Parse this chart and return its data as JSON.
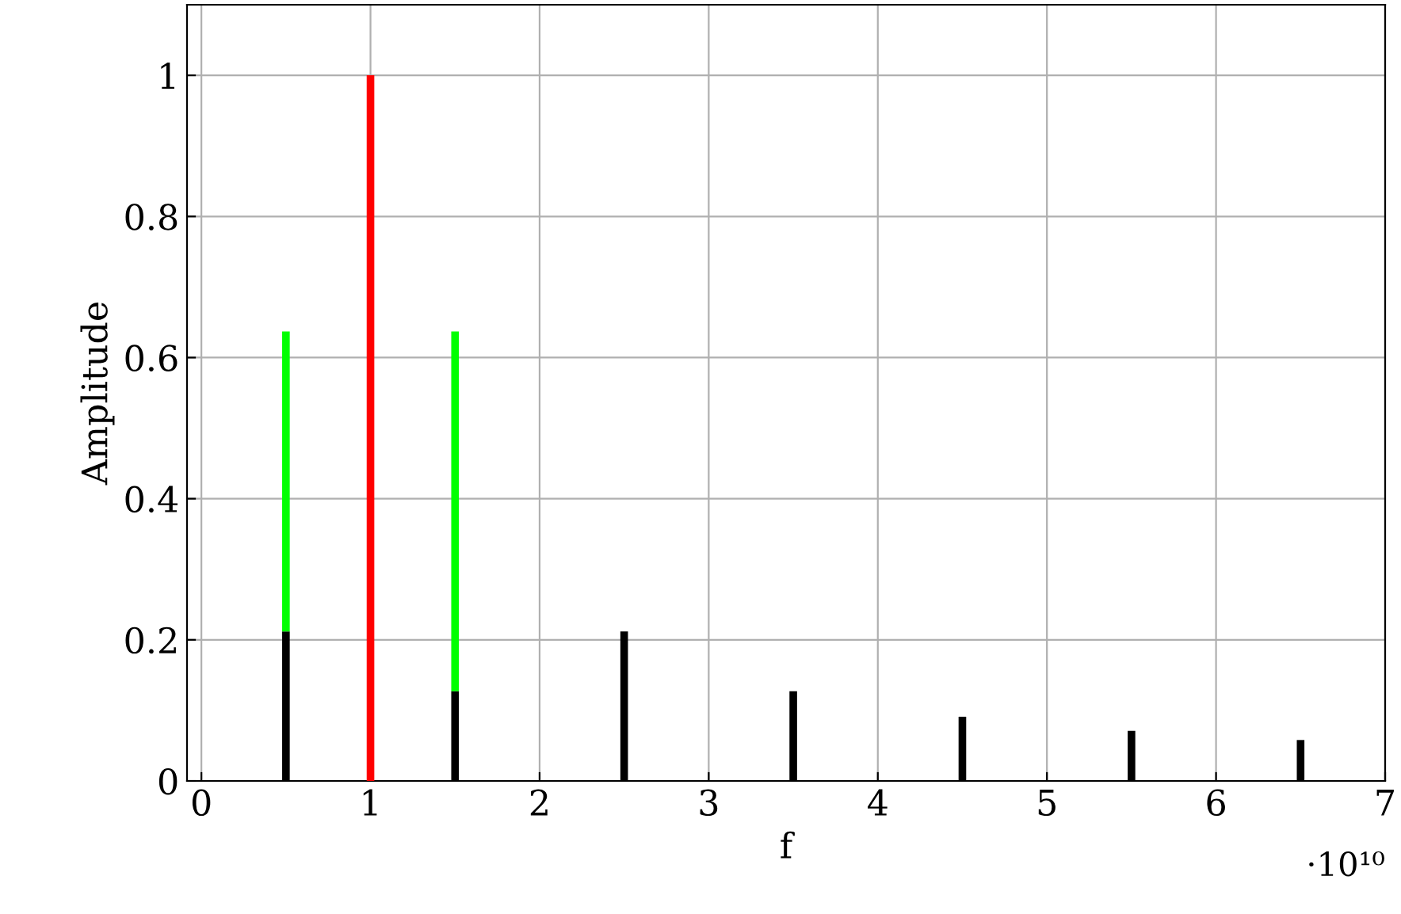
{
  "chart_data": {
    "type": "bar",
    "xlabel": "f",
    "ylabel": "Amplitude",
    "series": [
      {
        "color": "#000000",
        "values": [
          0.212,
          null,
          0.127,
          0.212,
          0.127,
          0.091,
          0.071,
          0.058
        ]
      },
      {
        "color": "#00ff00",
        "values": [
          0.425,
          null,
          0.51,
          null,
          null,
          null,
          null,
          null
        ]
      },
      {
        "color": "#ff0000",
        "values": [
          null,
          1,
          null,
          null,
          null,
          null,
          null,
          null
        ]
      }
    ],
    "x": [
      0.5,
      1,
      1.5,
      2.5,
      3.5,
      4.5,
      5.5,
      6.5
    ],
    "stacked": true,
    "xlim": [
      -0.085,
      7
    ],
    "ylim": [
      0,
      1.1
    ],
    "xticks": [
      0,
      1,
      2,
      3,
      4,
      5,
      6,
      7
    ],
    "yticks": [
      0,
      0.2,
      0.4,
      0.6,
      0.8,
      1
    ],
    "grid": true,
    "annotations": [
      "·10¹⁰"
    ]
  }
}
